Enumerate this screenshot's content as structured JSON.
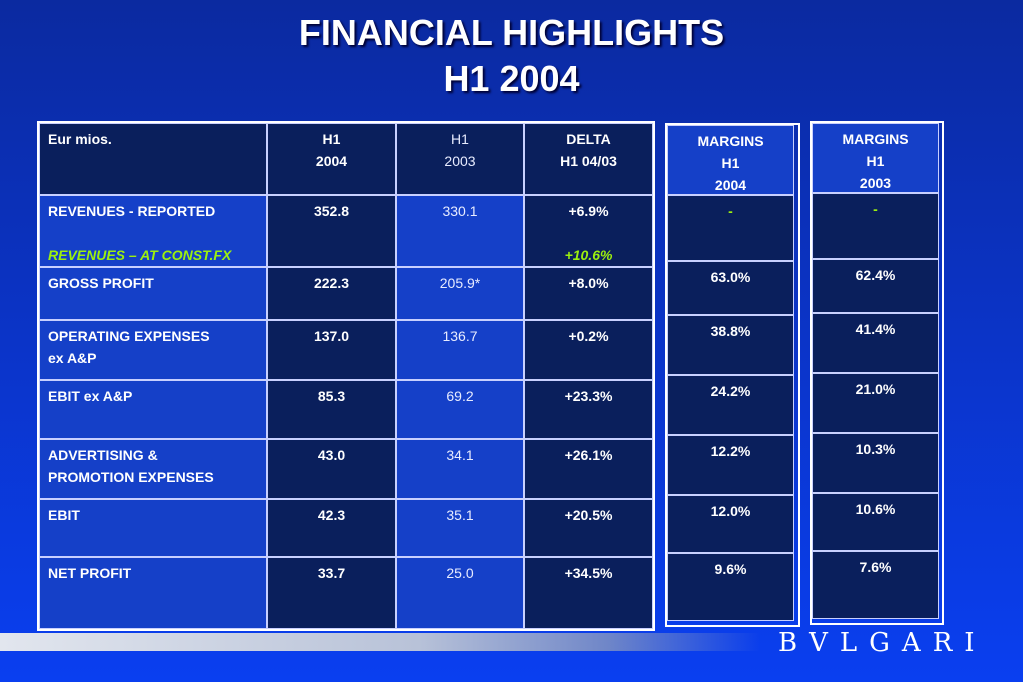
{
  "title": {
    "line1": "FINANCIAL HIGHLIGHTS",
    "line2": "H1 2004"
  },
  "main_table": {
    "header": {
      "label": "Eur mios.",
      "h1_2004": [
        "H1",
        "2004"
      ],
      "h1_2003": [
        "H1",
        "2003"
      ],
      "delta": [
        "DELTA",
        "H1 04/03"
      ]
    },
    "rows": [
      {
        "label": [
          "REVENUES - REPORTED"
        ],
        "sub_label": "REVENUES – AT CONST.FX",
        "v2004": "352.8",
        "v2003": "330.1",
        "delta": "+6.9%",
        "sub_delta": "+10.6%"
      },
      {
        "label": [
          "GROSS PROFIT"
        ],
        "v2004": "222.3",
        "v2003": "205.9*",
        "delta": "+8.0%"
      },
      {
        "label": [
          "OPERATING EXPENSES",
          "ex A&P"
        ],
        "v2004": "137.0",
        "v2003": "136.7",
        "delta": "+0.2%"
      },
      {
        "label": [
          "EBIT ex A&P"
        ],
        "v2004": "85.3",
        "v2003": "69.2",
        "delta": "+23.3%"
      },
      {
        "label": [
          "ADVERTISING &",
          "PROMOTION EXPENSES"
        ],
        "v2004": "43.0",
        "v2003": "34.1",
        "delta": "+26.1%"
      },
      {
        "label": [
          "EBIT"
        ],
        "v2004": "42.3",
        "v2003": "35.1",
        "delta": "+20.5%"
      },
      {
        "label": [
          "NET PROFIT"
        ],
        "v2004": "33.7",
        "v2003": "25.0",
        "delta": "+34.5%"
      }
    ]
  },
  "margins_2004": {
    "header": [
      "MARGINS",
      "H1",
      "2004"
    ],
    "values": [
      "-",
      "63.0%",
      "38.8%",
      "24.2%",
      "12.2%",
      "12.0%",
      "9.6%"
    ]
  },
  "margins_2003": {
    "header": [
      "MARGINS",
      "H1",
      "2003"
    ],
    "values": [
      "-",
      "62.4%",
      "41.4%",
      "21.0%",
      "10.3%",
      "10.6%",
      "7.6%"
    ]
  },
  "logo": "BVLGARI",
  "colors": {
    "dark_cell": "#0a1f5c",
    "medium_cell": "#1540c8",
    "accent_green": "#9cf00e",
    "border": "#ffffff"
  }
}
